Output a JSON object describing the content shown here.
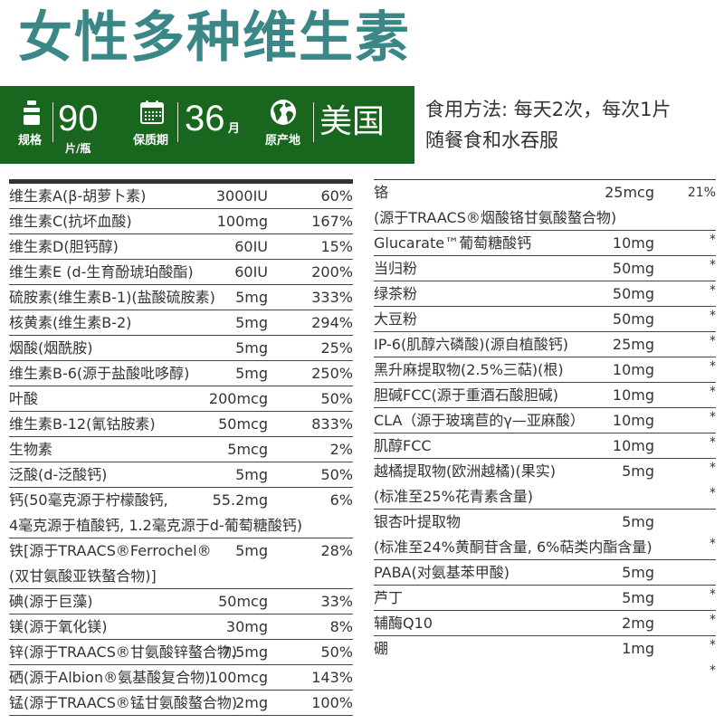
{
  "title": "女性多种维生素",
  "colors": {
    "title": "#3b8787",
    "banner": "#19661e",
    "text": "#333333"
  },
  "banner": {
    "specs": [
      {
        "icon": "bottle-icon",
        "label": "规格",
        "value": "90",
        "unit": "片/瓶"
      },
      {
        "icon": "calendar-icon",
        "label": "保质期",
        "value": "36",
        "unit": "月"
      },
      {
        "icon": "globe-icon",
        "label": "原产地",
        "value": "美国",
        "unit": ""
      }
    ]
  },
  "usage": {
    "line1": "食用方法: 每天2次，每次1片",
    "line2": "随餐食和水吞服"
  },
  "left_table": [
    {
      "name": "维生素A(β-胡萝卜素)",
      "amount": "3000IU",
      "dv": "60%"
    },
    {
      "name": "维生素C(抗坏血酸)",
      "amount": "100mg",
      "dv": "167%"
    },
    {
      "name": "维生素D(胆钙醇)",
      "amount": "60IU",
      "dv": "15%"
    },
    {
      "name": "维生素E (d-生育酚琥珀酸酯)",
      "amount": "60IU",
      "dv": "200%"
    },
    {
      "name": "硫胺素(维生素B-1)(盐酸硫胺素)",
      "amount": "5mg",
      "dv": "333%"
    },
    {
      "name": "核黄素(维生素B-2)",
      "amount": "5mg",
      "dv": "294%"
    },
    {
      "name": "烟酸(烟酰胺)",
      "amount": "5mg",
      "dv": "25%"
    },
    {
      "name": "维生素B-6(源于盐酸吡哆醇)",
      "amount": "5mg",
      "dv": "250%"
    },
    {
      "name": "叶酸",
      "amount": "200mcg",
      "dv": "50%"
    },
    {
      "name": "维生素B-12(氰钴胺素)",
      "amount": "50mcg",
      "dv": "833%"
    },
    {
      "name": "生物素",
      "amount": "5mcg",
      "dv": "2%"
    },
    {
      "name": "泛酸(d-泛酸钙)",
      "amount": "5mg",
      "dv": "50%"
    },
    {
      "name": "钙(50毫克源于柠檬酸钙,",
      "amount": "55.2mg",
      "dv": "6%",
      "cont": "4毫克源于植酸钙, 1.2毫克源于d-葡萄糖酸钙)"
    },
    {
      "name": "铁[源于TRAACS®Ferrochel®",
      "amount": "5mg",
      "dv": "28%",
      "cont": "(双甘氨酸亚铁螯合物)]"
    },
    {
      "name": "碘(源于巨藻)",
      "amount": "50mcg",
      "dv": "33%"
    },
    {
      "name": "镁(源于氧化镁)",
      "amount": "30mg",
      "dv": "8%"
    },
    {
      "name": "锌(源于TRAACS®甘氨酸锌螯合物)",
      "amount": "7.5mg",
      "dv": "50%"
    },
    {
      "name": "硒(源于Albion®氨基酸复合物)",
      "amount": "100mcg",
      "dv": "143%"
    },
    {
      "name": "锰(源于TRAACS®锰甘氨酸螯合物)",
      "amount": "2mg",
      "dv": "100%"
    }
  ],
  "right_table": [
    {
      "name": "铬",
      "amount": "25mcg",
      "dv": "21%",
      "cont": "(源于TRAACS®烟酸铬甘氨酸螯合物)"
    },
    {
      "name": "Glucarate™葡萄糖酸钙",
      "amount": "10mg",
      "dv": "*"
    },
    {
      "name": "当归粉",
      "amount": "50mg",
      "dv": "*"
    },
    {
      "name": "绿茶粉",
      "amount": "50mg",
      "dv": "*"
    },
    {
      "name": "大豆粉",
      "amount": "50mg",
      "dv": "*"
    },
    {
      "name": "IP-6(肌醇六磷酸)(源自植酸钙)",
      "amount": "25mg",
      "dv": "*"
    },
    {
      "name": "黑升麻提取物(2.5%三萜)(根)",
      "amount": "10mg",
      "dv": "*"
    },
    {
      "name": "胆碱FCC(源于重酒石酸胆碱)",
      "amount": "10mg",
      "dv": "*"
    },
    {
      "name": "CLA（源于玻璃苣的γ—亚麻酸）",
      "amount": "10mg",
      "dv": "*"
    },
    {
      "name": "肌醇FCC",
      "amount": "10mg",
      "dv": "*"
    },
    {
      "name": "越橘提取物(欧洲越橘)(果实)",
      "amount": "5mg",
      "dv": "*"
    },
    {
      "name": "(标准至25%花青素含量)",
      "amount": "",
      "dv": "*"
    },
    {
      "name": "银杏叶提取物",
      "amount": "5mg",
      "dv": ""
    },
    {
      "name": "(标准至24%黄酮苷含量, 6%萜类内酯含量)",
      "amount": "",
      "dv": "*"
    },
    {
      "name": "PABA(对氨基苯甲酸)",
      "amount": "5mg",
      "dv": ""
    },
    {
      "name": "芦丁",
      "amount": "5mg",
      "dv": "*"
    },
    {
      "name": "辅酶Q10",
      "amount": "2mg",
      "dv": "*"
    },
    {
      "name": "硼",
      "amount": "1mg",
      "dv": "*"
    },
    {
      "name": "",
      "amount": "",
      "dv": "*"
    }
  ]
}
